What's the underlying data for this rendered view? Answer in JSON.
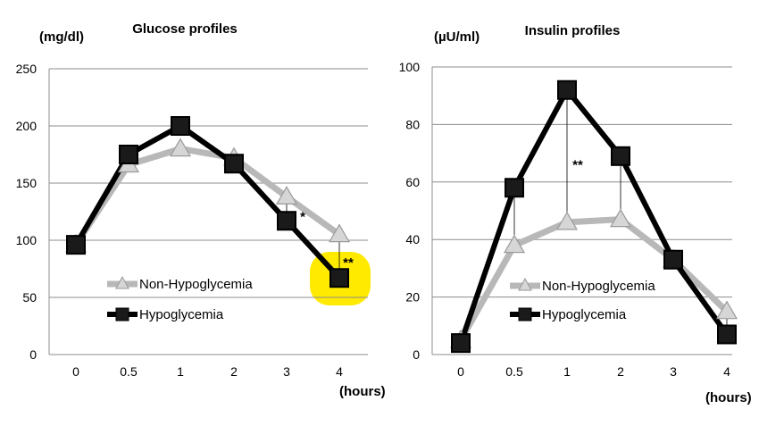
{
  "chart_data": [
    {
      "type": "line",
      "title": "Glucose profiles",
      "ylabel": "(mg/dl)",
      "xlabel": "(hours)",
      "categories": [
        "0",
        "0.5",
        "1",
        "2",
        "3",
        "4"
      ],
      "ylim": [
        0,
        250
      ],
      "yticks": [
        0,
        50,
        100,
        150,
        200,
        250
      ],
      "grid": true,
      "legend_position": "bottom-left",
      "series": [
        {
          "name": "Non-Hypoglycemia",
          "values": [
            96,
            166,
            180,
            172,
            138,
            105
          ],
          "color": "#b8b8b8",
          "marker": "triangle"
        },
        {
          "name": "Hypoglycemia",
          "values": [
            96,
            175,
            200,
            167,
            117,
            67
          ],
          "color": "#000000",
          "marker": "square"
        }
      ],
      "annotations": [
        {
          "text": "*",
          "category_index": 4,
          "y": 123,
          "err_from": 117,
          "err_to": 145
        },
        {
          "text": "**",
          "category_index": 5,
          "y": 83,
          "err_from": 67,
          "err_to": 110,
          "highlight": "#ffea00"
        }
      ]
    },
    {
      "type": "line",
      "title": "Insulin profiles",
      "ylabel": "(µU/ml)",
      "xlabel": "(hours)",
      "categories": [
        "0",
        "0.5",
        "1",
        "2",
        "3",
        "4"
      ],
      "ylim": [
        0,
        100
      ],
      "yticks": [
        0,
        20,
        40,
        60,
        80,
        100
      ],
      "grid": true,
      "legend_position": "bottom-center",
      "series": [
        {
          "name": "Non-Hypoglycemia",
          "values": [
            5,
            38,
            46,
            47,
            33,
            15
          ],
          "color": "#b8b8b8",
          "marker": "triangle"
        },
        {
          "name": "Hypoglycemia",
          "values": [
            4,
            58,
            92,
            69,
            33,
            7
          ],
          "color": "#000000",
          "marker": "square"
        }
      ],
      "annotations": [
        {
          "text": "**",
          "category_index": 2,
          "y": 67,
          "err_from": 46,
          "err_to": 92
        }
      ],
      "error_bars": [
        {
          "category_index": 1,
          "from": 38,
          "to": 58
        },
        {
          "category_index": 3,
          "from": 47,
          "to": 69
        },
        {
          "category_index": 5,
          "from": 7,
          "to": 15
        }
      ]
    }
  ]
}
